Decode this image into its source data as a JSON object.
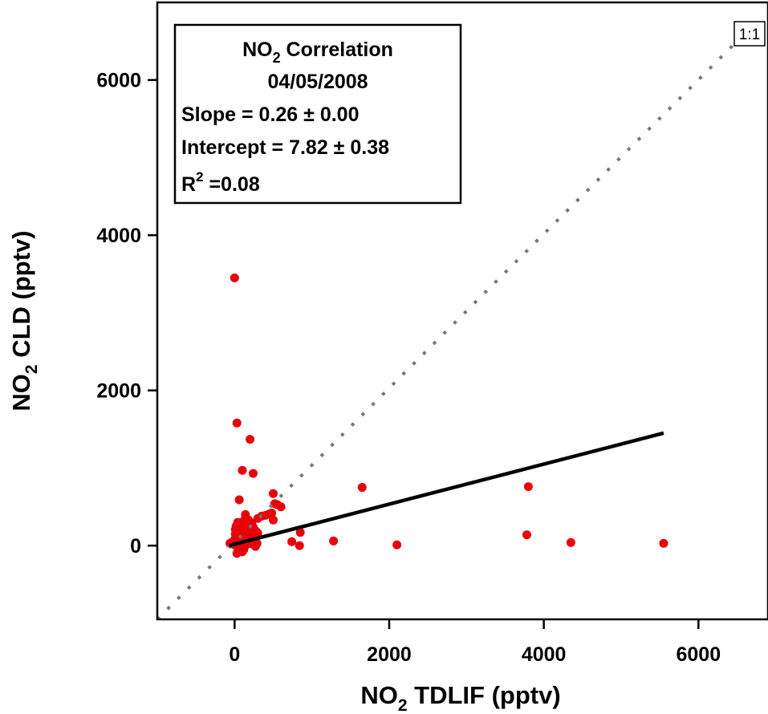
{
  "chart_data": {
    "type": "scatter",
    "xlabel": {
      "main": "NO",
      "sub": "2",
      "rest": " TDLIF (pptv)"
    },
    "ylabel": {
      "main": "NO",
      "sub": "2",
      "rest": " CLD (pptv)"
    },
    "xlim": [
      -1000,
      6900
    ],
    "ylim": [
      -950,
      7000
    ],
    "xticks": [
      0,
      2000,
      4000,
      6000
    ],
    "yticks": [
      0,
      2000,
      4000,
      6000
    ],
    "xtick_labels": [
      "0",
      "2000",
      "4000",
      "6000"
    ],
    "ytick_labels": [
      "0",
      "2000",
      "4000",
      "6000"
    ],
    "grid": false,
    "marker_color": "#e8000a",
    "fit_line_color": "#000000",
    "one_to_one_color": "#777777",
    "one_to_one_label": "1:1",
    "stats_box": {
      "title_main": "NO",
      "title_sub": "2",
      "title_rest": " Correlation",
      "date": "04/05/2008",
      "slope": "Slope = 0.26 ± 0.00",
      "intercept": "Intercept = 7.82 ± 0.38",
      "r2_main": "R",
      "r2_sup": "2",
      "r2_rest": " =0.08"
    },
    "fit_line": {
      "x": [
        -70,
        5550
      ],
      "y": [
        0,
        1450
      ]
    },
    "one_to_one_line": {
      "x": [
        -1000,
        6500
      ],
      "y": [
        -950,
        6500
      ]
    },
    "series": [
      {
        "x": [
          0,
          30,
          200,
          100,
          240,
          60,
          500,
          550,
          600,
          520,
          480,
          450,
          400,
          350,
          300,
          500,
          1650,
          3800,
          3780,
          4350,
          5550,
          2100,
          1280,
          850,
          840,
          740,
          20,
          40,
          60,
          80,
          100,
          120,
          140,
          160,
          180,
          200,
          220,
          240,
          260,
          280,
          300,
          10,
          30,
          50,
          70,
          90,
          110,
          130,
          150,
          170,
          190,
          210,
          230,
          250,
          0,
          20,
          40,
          60,
          80,
          100,
          120,
          140,
          160,
          180,
          200,
          220,
          -60,
          -40,
          -20,
          0,
          20,
          40,
          60,
          80,
          100,
          120,
          30,
          70,
          110,
          150,
          190,
          230,
          270,
          50,
          90,
          130,
          170,
          210,
          250,
          290,
          40,
          80,
          120,
          160,
          200,
          240,
          60,
          100,
          140,
          180,
          220,
          10,
          50,
          90,
          130,
          170
        ],
        "y": [
          3450,
          1580,
          1370,
          970,
          930,
          590,
          670,
          530,
          500,
          540,
          420,
          410,
          390,
          380,
          350,
          330,
          750,
          760,
          140,
          40,
          30,
          10,
          60,
          170,
          0,
          50,
          250,
          300,
          280,
          200,
          240,
          320,
          350,
          300,
          280,
          260,
          220,
          240,
          200,
          180,
          160,
          150,
          180,
          200,
          170,
          140,
          160,
          180,
          120,
          150,
          100,
          130,
          110,
          90,
          80,
          110,
          90,
          70,
          60,
          100,
          80,
          60,
          70,
          50,
          60,
          40,
          30,
          40,
          20,
          10,
          0,
          -20,
          -40,
          -60,
          -80,
          -50,
          -100,
          -70,
          -30,
          10,
          40,
          20,
          -10,
          30,
          60,
          80,
          100,
          70,
          50,
          30,
          120,
          150,
          180,
          210,
          160,
          140,
          230,
          260,
          400,
          330,
          290,
          210,
          190,
          170,
          130,
          110
        ]
      }
    ]
  }
}
